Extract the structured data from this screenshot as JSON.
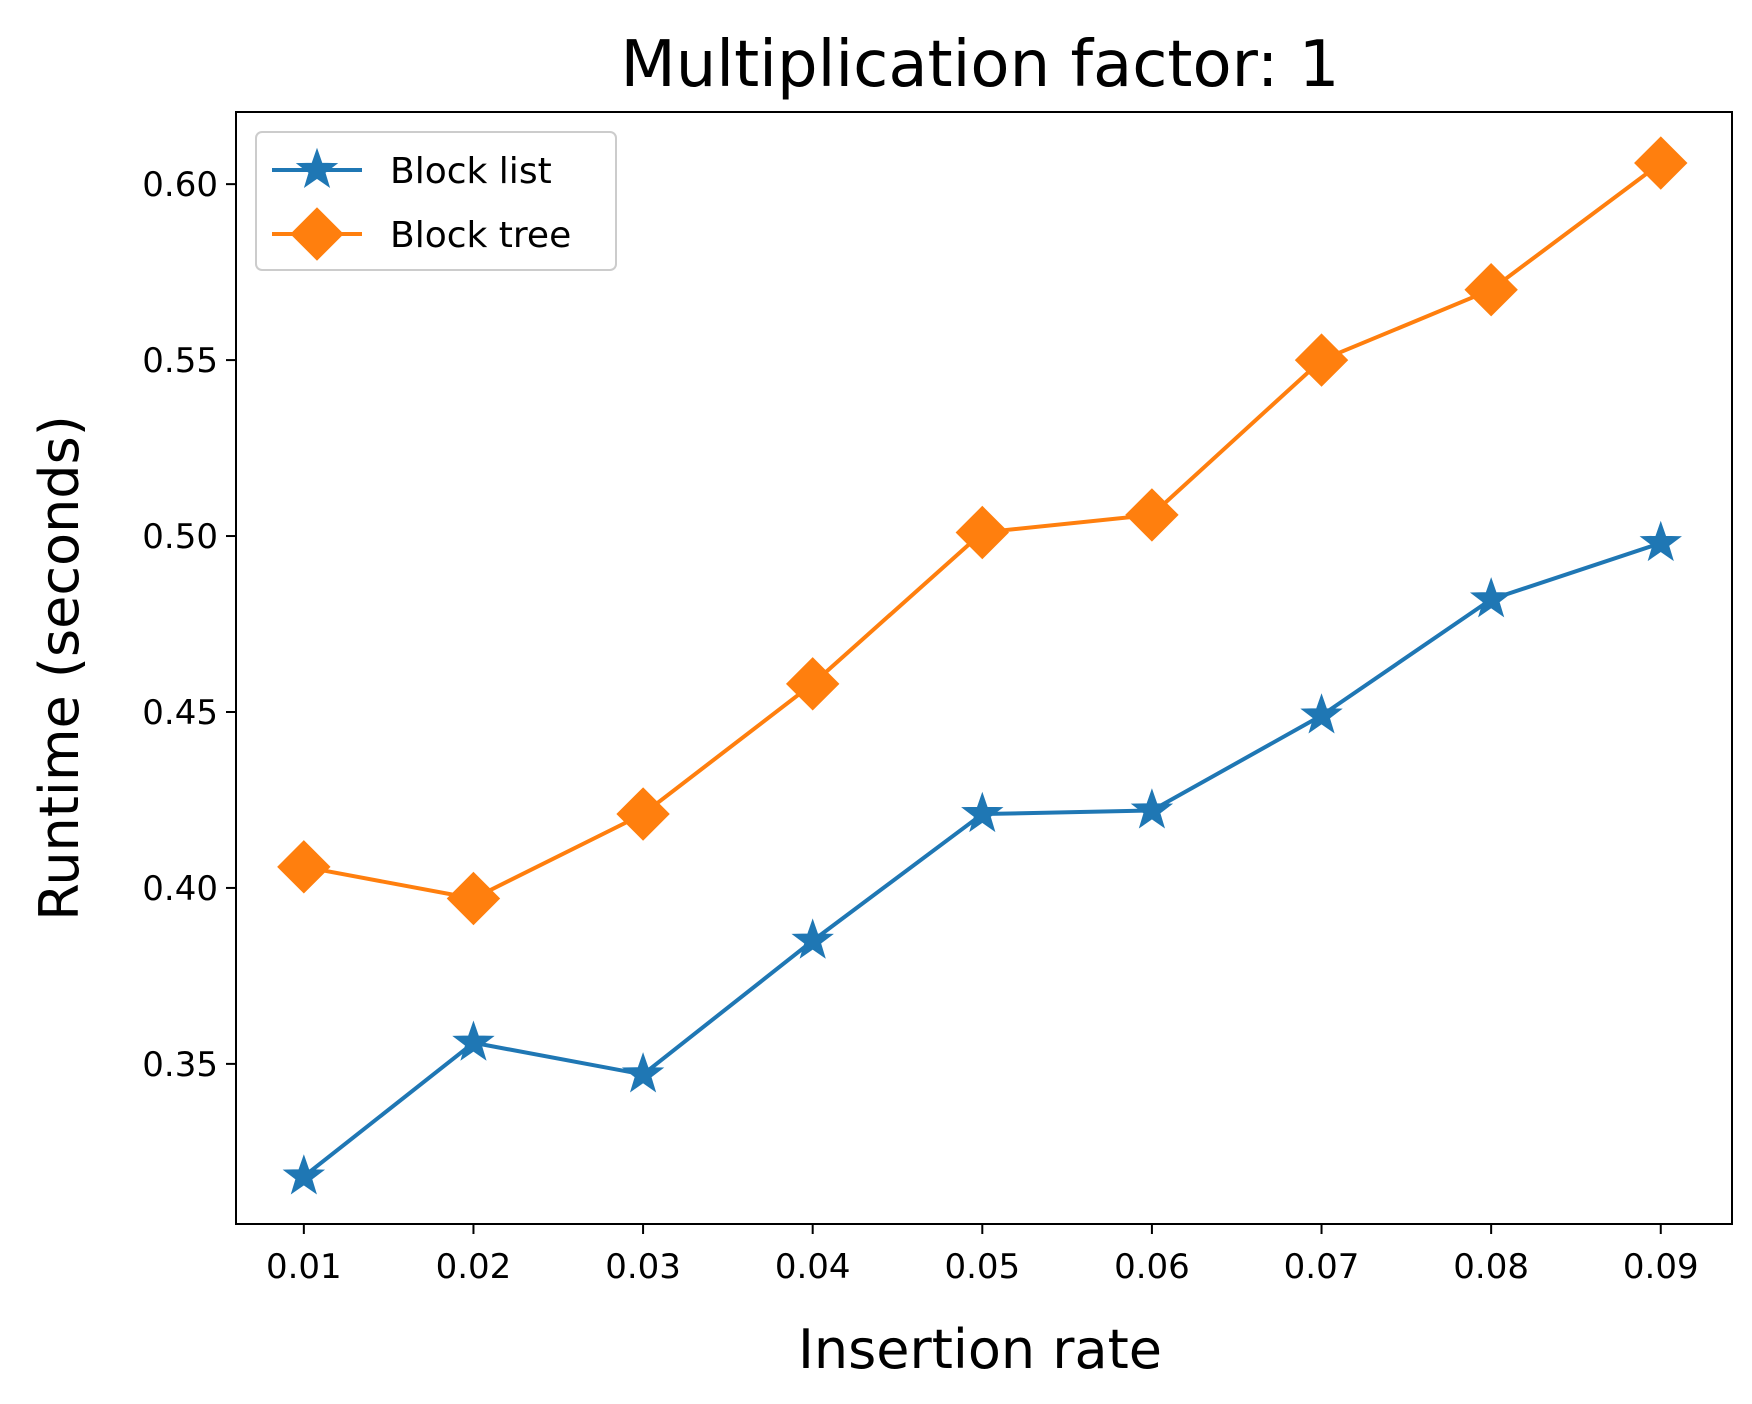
{
  "chart_data": {
    "type": "line",
    "title": "Multiplication factor: 1",
    "xlabel": "Insertion rate",
    "ylabel": "Runtime (seconds)",
    "x": [
      0.01,
      0.02,
      0.03,
      0.04,
      0.05,
      0.06,
      0.07,
      0.08,
      0.09
    ],
    "x_tick_labels": [
      "0.01",
      "0.02",
      "0.03",
      "0.04",
      "0.05",
      "0.06",
      "0.07",
      "0.08",
      "0.09"
    ],
    "y_ticks": [
      0.35,
      0.4,
      0.45,
      0.5,
      0.55,
      0.6
    ],
    "y_tick_labels": [
      "0.35",
      "0.40",
      "0.45",
      "0.50",
      "0.55",
      "0.60"
    ],
    "xlim": [
      0.006,
      0.0942
    ],
    "ylim": [
      0.3045,
      0.6205
    ],
    "grid": false,
    "legend_position": "top-left",
    "series": [
      {
        "name": "Block list",
        "marker": "star",
        "color": "#1f77b4",
        "values": [
          0.318,
          0.356,
          0.347,
          0.385,
          0.421,
          0.422,
          0.449,
          0.482,
          0.498
        ]
      },
      {
        "name": "Block tree",
        "marker": "diamond",
        "color": "#ff7f0e",
        "values": [
          0.406,
          0.397,
          0.421,
          0.458,
          0.501,
          0.506,
          0.55,
          0.57,
          0.606
        ]
      }
    ]
  }
}
